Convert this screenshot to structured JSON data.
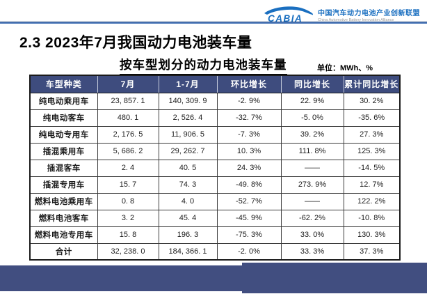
{
  "title": "2.3 2023年7月我国动力电池装车量",
  "subtitle": "按车型划分的动力电池装车量",
  "unit_label": "单位：MWh、%",
  "logo": {
    "abbr": "CABIA",
    "org_cn": "中国汽车动力电池产业创新联盟",
    "org_en": "China Automotive Battery Innovation Alliance"
  },
  "table": {
    "columns": [
      "车型种类",
      "7月",
      "1-7月",
      "环比增长",
      "同比增长",
      "累计同比增长"
    ],
    "rows": [
      [
        "纯电动乘用车",
        "23, 857. 1",
        "140, 309. 9",
        "-2. 9%",
        "22. 9%",
        "30. 2%"
      ],
      [
        "纯电动客车",
        "480. 1",
        "2, 526. 4",
        "-32. 7%",
        "-5. 0%",
        "-35. 6%"
      ],
      [
        "纯电动专用车",
        "2, 176. 5",
        "11, 906. 5",
        "-7. 3%",
        "39. 2%",
        "27. 3%"
      ],
      [
        "插混乘用车",
        "5, 686. 2",
        "29, 262. 7",
        "10. 3%",
        "111. 8%",
        "125. 3%"
      ],
      [
        "插混客车",
        "2. 4",
        "40. 5",
        "24. 3%",
        "——",
        "-14. 5%"
      ],
      [
        "插混专用车",
        "15. 7",
        "74. 3",
        "-49. 8%",
        "273. 9%",
        "12. 7%"
      ],
      [
        "燃料电池乘用车",
        "0. 8",
        "4. 0",
        "-52. 7%",
        "——",
        "122. 2%"
      ],
      [
        "燃料电池客车",
        "3. 2",
        "45. 4",
        "-45. 9%",
        "-62. 2%",
        "-10. 8%"
      ],
      [
        "燃料电池专用车",
        "15. 8",
        "196. 3",
        "-75. 3%",
        "33. 0%",
        "130. 3%"
      ],
      [
        "合计",
        "32, 238. 0",
        "184, 366. 1",
        "-2. 0%",
        "33. 3%",
        "37. 3%"
      ]
    ]
  },
  "colors": {
    "table_header_bg": "#3e4c7e",
    "footer_bar": "#414e80",
    "logo_blue": "#1a6fc0",
    "divider_blue": "#4a76b8"
  }
}
